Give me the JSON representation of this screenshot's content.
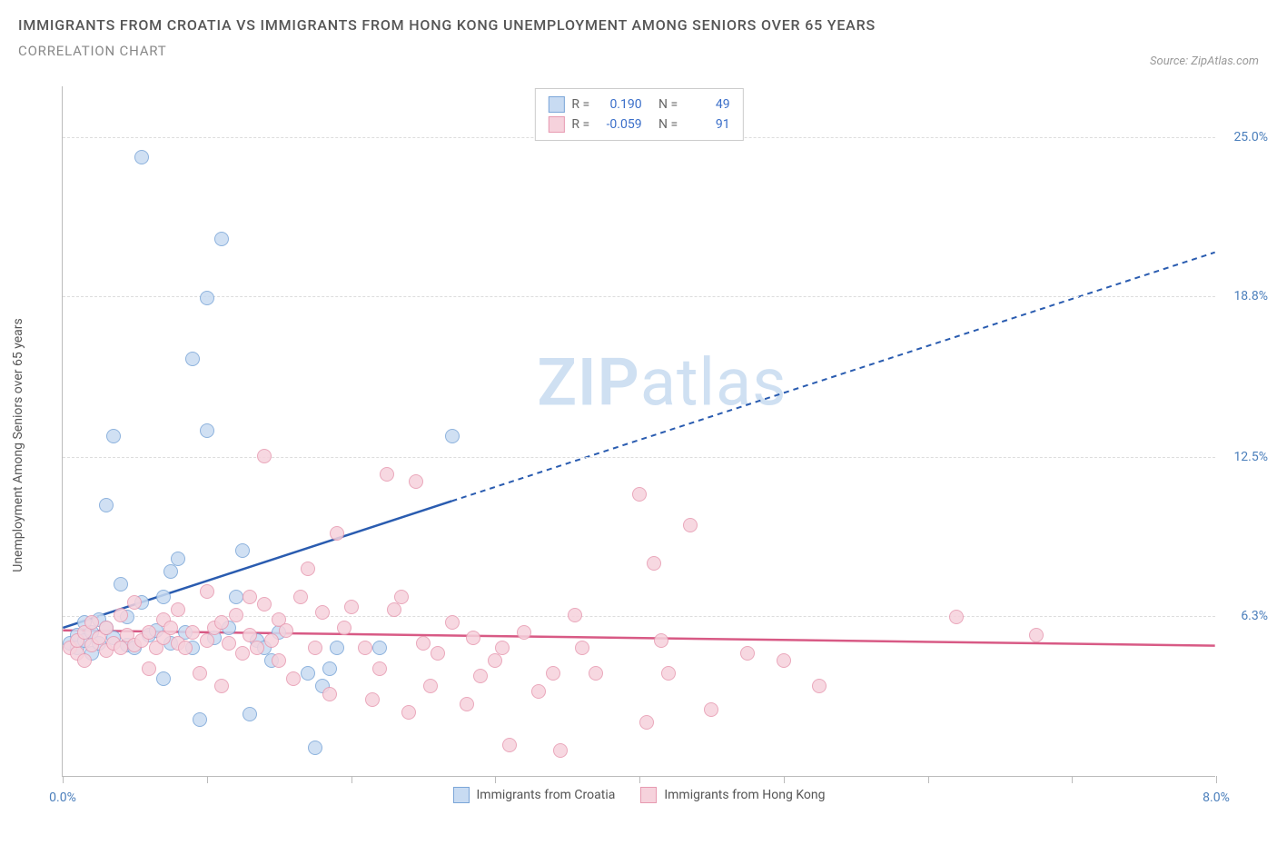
{
  "title": "IMMIGRANTS FROM CROATIA VS IMMIGRANTS FROM HONG KONG UNEMPLOYMENT AMONG SENIORS OVER 65 YEARS",
  "subtitle": "CORRELATION CHART",
  "source": "Source: ZipAtlas.com",
  "y_axis_label": "Unemployment Among Seniors over 65 years",
  "watermark_a": "ZIP",
  "watermark_b": "atlas",
  "chart": {
    "type": "scatter",
    "background_color": "#ffffff",
    "grid_color": "#dddddd",
    "axis_color": "#bbbbbb",
    "xlim": [
      0,
      8.0
    ],
    "ylim": [
      0,
      27.0
    ],
    "x_ticks": [
      0,
      1,
      2,
      3,
      4,
      5,
      6,
      7,
      8
    ],
    "x_tick_labels": {
      "0": "0.0%",
      "8": "8.0%"
    },
    "y_ticks": [
      6.3,
      12.5,
      18.8,
      25.0
    ],
    "y_tick_labels": [
      "6.3%",
      "12.5%",
      "18.8%",
      "25.0%"
    ],
    "tick_label_color": "#4a7ebb",
    "tick_label_fontsize": 14,
    "series": [
      {
        "name": "Immigrants from Croatia",
        "color_fill": "#c8dbf2",
        "color_stroke": "#7ba6d8",
        "trend_color": "#2a5cb0",
        "marker_radius": 8,
        "r": "0.190",
        "n": "49",
        "trend": {
          "x1": 0,
          "y1": 5.8,
          "x2": 8.0,
          "y2": 20.5,
          "solid_until_x": 2.7
        },
        "points": [
          [
            0.05,
            5.2
          ],
          [
            0.1,
            5.5
          ],
          [
            0.1,
            5.0
          ],
          [
            0.15,
            5.3
          ],
          [
            0.15,
            6.0
          ],
          [
            0.2,
            4.8
          ],
          [
            0.2,
            5.6
          ],
          [
            0.25,
            5.2
          ],
          [
            0.25,
            6.1
          ],
          [
            0.3,
            5.8
          ],
          [
            0.3,
            10.6
          ],
          [
            0.35,
            5.4
          ],
          [
            0.35,
            13.3
          ],
          [
            0.4,
            7.5
          ],
          [
            0.45,
            5.1
          ],
          [
            0.45,
            6.2
          ],
          [
            0.5,
            5.0
          ],
          [
            0.55,
            24.2
          ],
          [
            0.55,
            6.8
          ],
          [
            0.6,
            5.5
          ],
          [
            0.65,
            5.7
          ],
          [
            0.7,
            7.0
          ],
          [
            0.7,
            3.8
          ],
          [
            0.75,
            8.0
          ],
          [
            0.75,
            5.2
          ],
          [
            0.8,
            8.5
          ],
          [
            0.85,
            5.6
          ],
          [
            0.9,
            16.3
          ],
          [
            0.9,
            5.0
          ],
          [
            0.95,
            2.2
          ],
          [
            1.0,
            18.7
          ],
          [
            1.0,
            13.5
          ],
          [
            1.05,
            5.4
          ],
          [
            1.1,
            21.0
          ],
          [
            1.15,
            5.8
          ],
          [
            1.2,
            7.0
          ],
          [
            1.25,
            8.8
          ],
          [
            1.3,
            2.4
          ],
          [
            1.35,
            5.3
          ],
          [
            1.4,
            5.0
          ],
          [
            1.45,
            4.5
          ],
          [
            1.5,
            5.6
          ],
          [
            1.7,
            4.0
          ],
          [
            1.75,
            1.1
          ],
          [
            1.8,
            3.5
          ],
          [
            1.85,
            4.2
          ],
          [
            1.9,
            5.0
          ],
          [
            2.2,
            5.0
          ],
          [
            2.7,
            13.3
          ]
        ]
      },
      {
        "name": "Immigrants from Hong Kong",
        "color_fill": "#f6d2dc",
        "color_stroke": "#e79ab1",
        "trend_color": "#d85a85",
        "marker_radius": 8,
        "r": "-0.059",
        "n": "91",
        "trend": {
          "x1": 0,
          "y1": 5.7,
          "x2": 8.0,
          "y2": 5.1,
          "solid_until_x": 8.0
        },
        "points": [
          [
            0.05,
            5.0
          ],
          [
            0.1,
            4.8
          ],
          [
            0.1,
            5.3
          ],
          [
            0.15,
            5.6
          ],
          [
            0.15,
            4.5
          ],
          [
            0.2,
            5.1
          ],
          [
            0.2,
            6.0
          ],
          [
            0.25,
            5.4
          ],
          [
            0.3,
            5.8
          ],
          [
            0.3,
            4.9
          ],
          [
            0.35,
            5.2
          ],
          [
            0.4,
            6.3
          ],
          [
            0.4,
            5.0
          ],
          [
            0.45,
            5.5
          ],
          [
            0.5,
            5.1
          ],
          [
            0.5,
            6.8
          ],
          [
            0.55,
            5.3
          ],
          [
            0.6,
            5.6
          ],
          [
            0.6,
            4.2
          ],
          [
            0.65,
            5.0
          ],
          [
            0.7,
            6.1
          ],
          [
            0.7,
            5.4
          ],
          [
            0.75,
            5.8
          ],
          [
            0.8,
            5.2
          ],
          [
            0.8,
            6.5
          ],
          [
            0.85,
            5.0
          ],
          [
            0.9,
            5.6
          ],
          [
            0.95,
            4.0
          ],
          [
            1.0,
            5.3
          ],
          [
            1.0,
            7.2
          ],
          [
            1.05,
            5.8
          ],
          [
            1.1,
            6.0
          ],
          [
            1.1,
            3.5
          ],
          [
            1.15,
            5.2
          ],
          [
            1.2,
            6.3
          ],
          [
            1.25,
            4.8
          ],
          [
            1.3,
            5.5
          ],
          [
            1.3,
            7.0
          ],
          [
            1.35,
            5.0
          ],
          [
            1.4,
            12.5
          ],
          [
            1.4,
            6.7
          ],
          [
            1.45,
            5.3
          ],
          [
            1.5,
            4.5
          ],
          [
            1.5,
            6.1
          ],
          [
            1.55,
            5.7
          ],
          [
            1.6,
            3.8
          ],
          [
            1.65,
            7.0
          ],
          [
            1.7,
            8.1
          ],
          [
            1.75,
            5.0
          ],
          [
            1.8,
            6.4
          ],
          [
            1.85,
            3.2
          ],
          [
            1.9,
            9.5
          ],
          [
            1.95,
            5.8
          ],
          [
            2.0,
            6.6
          ],
          [
            2.1,
            5.0
          ],
          [
            2.15,
            3.0
          ],
          [
            2.2,
            4.2
          ],
          [
            2.25,
            11.8
          ],
          [
            2.3,
            6.5
          ],
          [
            2.35,
            7.0
          ],
          [
            2.4,
            2.5
          ],
          [
            2.45,
            11.5
          ],
          [
            2.5,
            5.2
          ],
          [
            2.55,
            3.5
          ],
          [
            2.6,
            4.8
          ],
          [
            2.7,
            6.0
          ],
          [
            2.8,
            2.8
          ],
          [
            2.85,
            5.4
          ],
          [
            2.9,
            3.9
          ],
          [
            3.0,
            4.5
          ],
          [
            3.05,
            5.0
          ],
          [
            3.1,
            1.2
          ],
          [
            3.2,
            5.6
          ],
          [
            3.3,
            3.3
          ],
          [
            3.4,
            4.0
          ],
          [
            3.45,
            1.0
          ],
          [
            3.55,
            6.3
          ],
          [
            3.6,
            5.0
          ],
          [
            3.7,
            4.0
          ],
          [
            4.0,
            11.0
          ],
          [
            4.05,
            2.1
          ],
          [
            4.1,
            8.3
          ],
          [
            4.15,
            5.3
          ],
          [
            4.2,
            4.0
          ],
          [
            4.35,
            9.8
          ],
          [
            4.5,
            2.6
          ],
          [
            4.75,
            4.8
          ],
          [
            5.0,
            4.5
          ],
          [
            5.25,
            3.5
          ],
          [
            6.2,
            6.2
          ],
          [
            6.75,
            5.5
          ]
        ]
      }
    ]
  },
  "legend_labels": {
    "r_prefix": "R = ",
    "n_prefix": "N = "
  }
}
